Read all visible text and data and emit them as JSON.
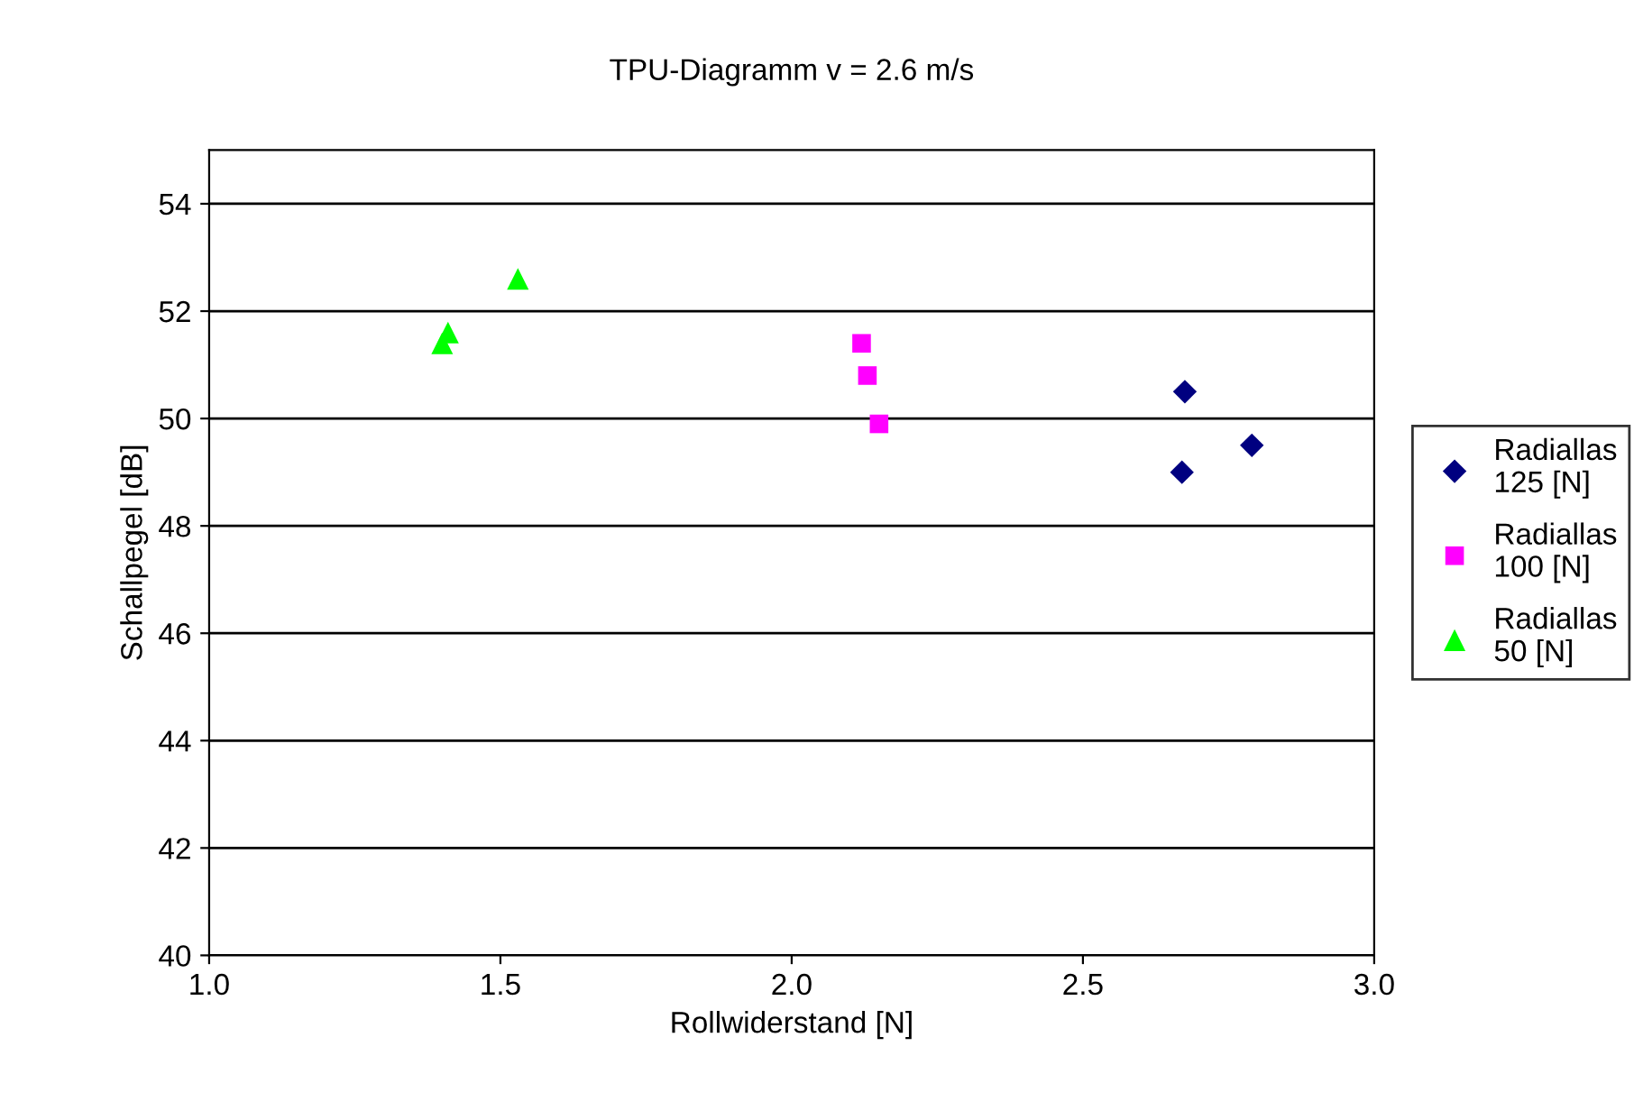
{
  "chart_data": {
    "type": "scatter",
    "title": "TPU-Diagramm v = 2.6 m/s",
    "xlabel": "Rollwiderstand [N]",
    "ylabel": "Schallpegel [dB]",
    "xlim": [
      1.0,
      3.0
    ],
    "xticks": [
      {
        "value": 1.0,
        "label": "1.0"
      },
      {
        "value": 1.5,
        "label": "1.5"
      },
      {
        "value": 2.0,
        "label": "2.0"
      },
      {
        "value": 2.5,
        "label": "2.5"
      },
      {
        "value": 3.0,
        "label": "3.0"
      }
    ],
    "ylim": [
      40,
      55
    ],
    "yticks": [
      40,
      42,
      44,
      46,
      48,
      50,
      52,
      54
    ],
    "grid": "y",
    "legend": "right",
    "series": [
      {
        "name": "Radiallas\n125 [N]",
        "color": "#000080",
        "marker": "diamond",
        "x": [
          2.675,
          2.67,
          2.79
        ],
        "values": [
          50.5,
          49.0,
          49.5
        ]
      },
      {
        "name": "Radiallas\n100 [N]",
        "color": "#ff00ff",
        "marker": "square",
        "x": [
          2.12,
          2.13,
          2.15
        ],
        "values": [
          51.4,
          50.8,
          49.9
        ]
      },
      {
        "name": "Radiallas\n50 [N]",
        "color": "#00ff00",
        "marker": "triangle",
        "x": [
          1.4,
          1.41,
          1.53
        ],
        "values": [
          51.4,
          51.6,
          52.6
        ]
      }
    ]
  }
}
